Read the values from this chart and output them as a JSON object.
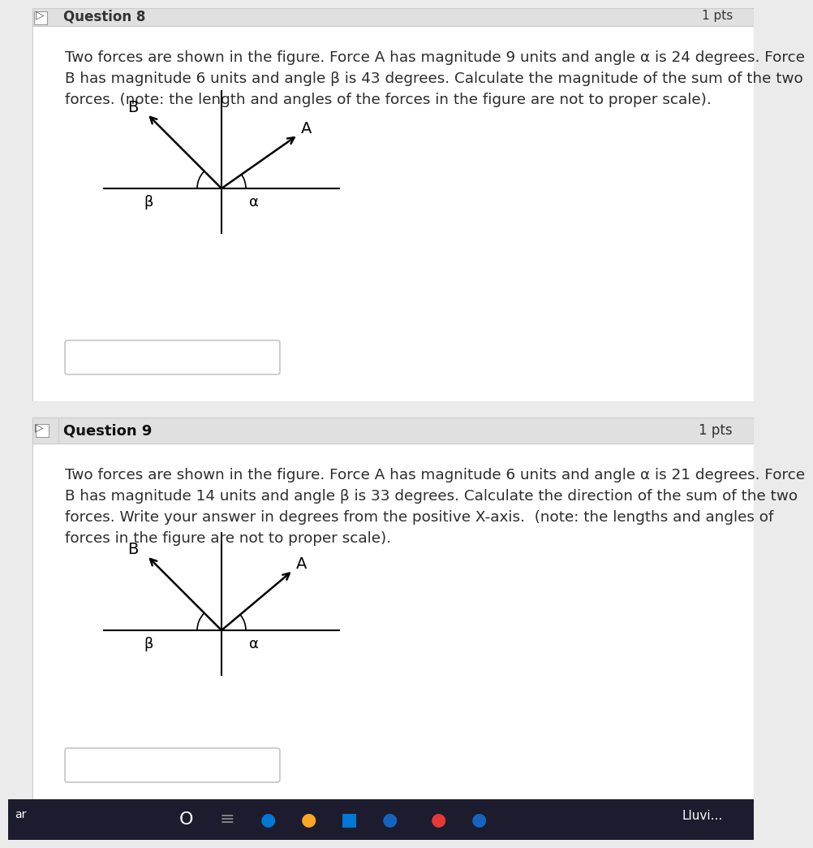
{
  "bg_color": "#ffffff",
  "page_bg": "#ebebeb",
  "border_color": "#cccccc",
  "header_bg": "#e0e0e0",
  "header_text_color": "#000000",
  "text_color": "#2c2c2c",
  "q8_header": "Question 8",
  "q8_pts": "1 pts",
  "q8_text_line1": "Two forces are shown in the figure. Force A has magnitude 9 units and angle α is 24 degrees. Force",
  "q8_text_line2": "B has magnitude 6 units and angle β is 43 degrees. Calculate the magnitude of the sum of the two",
  "q8_text_line3": "forces. (note: the length and angles of the forces in the figure are not to proper scale).",
  "q9_header": "Question 9",
  "q9_pts": "1 pts",
  "q9_text_line1": "Two forces are shown in the figure. Force A has magnitude 6 units and angle α is 21 degrees. Force",
  "q9_text_line2": "B has magnitude 14 units and angle β is 33 degrees. Calculate the direction of the sum of the two",
  "q9_text_line3": "forces. Write your answer in degrees from the positive X-axis.  (note: the lengths and angles of",
  "q9_text_line4": "forces in the figure are not to proper scale).",
  "arrow_color": "#000000",
  "axis_color": "#000000",
  "arc_color": "#000000",
  "label_color": "#000000",
  "taskbar_color": "#1a1a2e",
  "taskbar_text": "Lluvi...",
  "taskbar_left": "ar"
}
